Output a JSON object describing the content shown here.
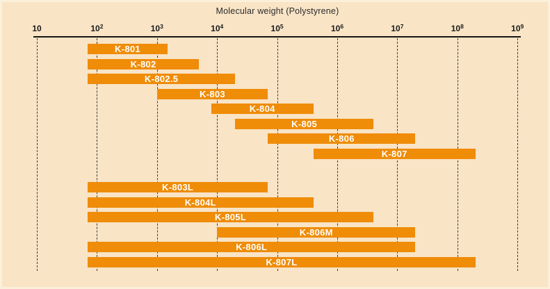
{
  "chart_data": {
    "type": "bar",
    "subtype": "horizontal-range-bars",
    "x_scale": "log10",
    "title": "Molecular weight (Polystyrene)",
    "x_axis": {
      "label": "Molecular weight (Polystyrene)",
      "min": 10,
      "max": 1000000000,
      "ticks": [
        {
          "exponent": 1,
          "base": "10",
          "sup": ""
        },
        {
          "exponent": 2,
          "base": "10",
          "sup": "2"
        },
        {
          "exponent": 3,
          "base": "10",
          "sup": "3"
        },
        {
          "exponent": 4,
          "base": "10",
          "sup": "4"
        },
        {
          "exponent": 5,
          "base": "10",
          "sup": "5"
        },
        {
          "exponent": 6,
          "base": "10",
          "sup": "6"
        },
        {
          "exponent": 7,
          "base": "10",
          "sup": "7"
        },
        {
          "exponent": 8,
          "base": "10",
          "sup": "8"
        },
        {
          "exponent": 9,
          "base": "10",
          "sup": "9"
        }
      ],
      "gridlines": "dashed-vertical"
    },
    "bars": [
      {
        "label": "K-801",
        "group": 0,
        "min": 70,
        "max": 1500
      },
      {
        "label": "K-802",
        "group": 0,
        "min": 70,
        "max": 5000
      },
      {
        "label": "K-802.5",
        "group": 0,
        "min": 70,
        "max": 20000
      },
      {
        "label": "K-803",
        "group": 0,
        "min": 1000,
        "max": 70000
      },
      {
        "label": "K-804",
        "group": 0,
        "min": 8000,
        "max": 400000
      },
      {
        "label": "K-805",
        "group": 0,
        "min": 20000,
        "max": 4000000
      },
      {
        "label": "K-806",
        "group": 0,
        "min": 70000,
        "max": 20000000
      },
      {
        "label": "K-807",
        "group": 0,
        "min": 400000,
        "max": 200000000
      },
      {
        "label": "K-803L",
        "group": 1,
        "min": 70,
        "max": 70000
      },
      {
        "label": "K-804L",
        "group": 1,
        "min": 70,
        "max": 400000
      },
      {
        "label": "K-805L",
        "group": 1,
        "min": 70,
        "max": 4000000
      },
      {
        "label": "K-806M",
        "group": 1,
        "min": 10000,
        "max": 20000000
      },
      {
        "label": "K-806L",
        "group": 1,
        "min": 70,
        "max": 20000000
      },
      {
        "label": "K-807L",
        "group": 1,
        "min": 70,
        "max": 200000000
      }
    ],
    "legend": null,
    "colors": {
      "bar": "#ef8c08",
      "background": "#f9e4c6",
      "frame": "#fbf0da",
      "axis_text": "#1a1a1a",
      "bar_label_text": "#ffffff",
      "gridline": "#3a3a3a"
    }
  }
}
